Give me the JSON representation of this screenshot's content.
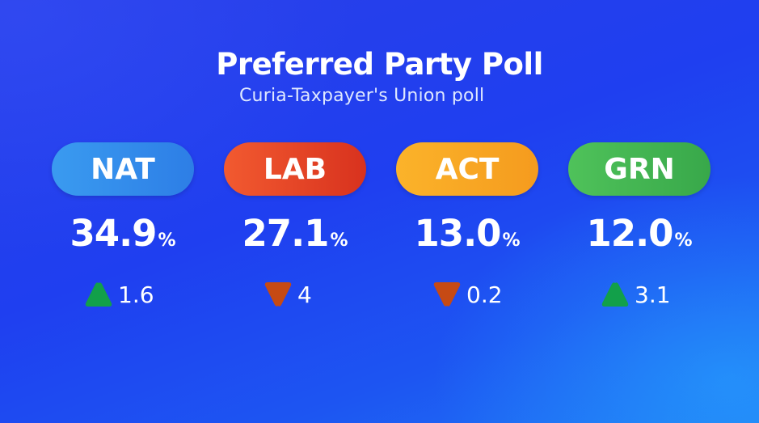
{
  "header": {
    "title": "Preferred Party Poll",
    "subtitle": "Curia-Taxpayer's Union poll"
  },
  "parties": [
    {
      "code": "NAT",
      "value": "34.9",
      "unit": "%",
      "change": "1.6",
      "direction": "up",
      "color_from": "#3a9bf0",
      "color_to": "#2d7ee6",
      "arrow_color": "#12a04a"
    },
    {
      "code": "LAB",
      "value": "27.1",
      "unit": "%",
      "change": "4",
      "direction": "down",
      "color_from": "#f25a30",
      "color_to": "#d8321e",
      "arrow_color": "#c64a14"
    },
    {
      "code": "ACT",
      "value": "13.0",
      "unit": "%",
      "change": "0.2",
      "direction": "down",
      "color_from": "#fbb32a",
      "color_to": "#f59b1e",
      "arrow_color": "#c64a14"
    },
    {
      "code": "GRN",
      "value": "12.0",
      "unit": "%",
      "change": "3.1",
      "direction": "up",
      "color_from": "#4fc25a",
      "color_to": "#38a84a",
      "arrow_color": "#12a04a"
    }
  ]
}
